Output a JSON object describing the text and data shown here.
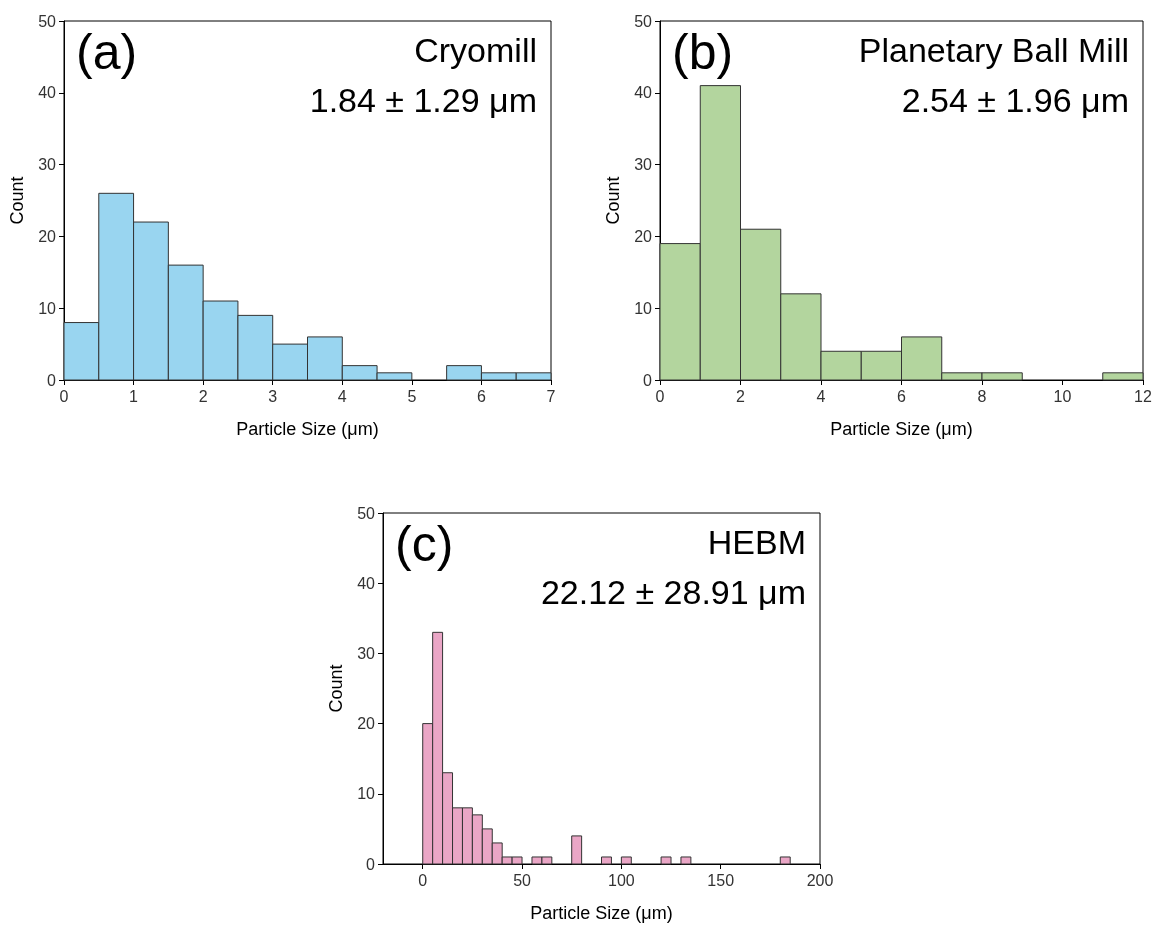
{
  "chart_data": [
    {
      "type": "histogram",
      "xlabel": "Particle Size (μm)",
      "ylabel": "Count",
      "annotations": [
        "(a)",
        "Cryomill",
        "1.84 ± 1.29 μm"
      ],
      "bins": [
        0,
        0.5,
        1,
        1.5,
        2,
        2.5,
        3,
        3.5,
        4,
        4.5,
        5,
        5.5,
        6,
        6.5,
        7
      ],
      "values": [
        8,
        26,
        22,
        16,
        11,
        9,
        5,
        6,
        2,
        1,
        0,
        2,
        1,
        1
      ],
      "color": "#99d5f0",
      "xlim": [
        0,
        7
      ],
      "xticks": [
        0,
        1,
        2,
        3,
        4,
        5,
        6,
        7
      ],
      "ylim": [
        0,
        50
      ],
      "yticks": [
        0,
        10,
        20,
        30,
        40,
        50
      ],
      "grid": false
    },
    {
      "type": "histogram",
      "xlabel": "Particle Size (μm)",
      "ylabel": "Count",
      "annotations": [
        "(b)",
        "Planetary Ball Mill",
        "2.54 ± 1.96 μm"
      ],
      "bins": [
        0,
        1,
        2,
        3,
        4,
        5,
        6,
        7,
        8,
        9,
        10,
        11,
        12
      ],
      "values": [
        19,
        41,
        21,
        12,
        4,
        4,
        6,
        1,
        1,
        0,
        0,
        1
      ],
      "color": "#b3d59e",
      "xlim": [
        0,
        12
      ],
      "xticks": [
        0,
        2,
        4,
        6,
        8,
        10,
        12
      ],
      "ylim": [
        0,
        50
      ],
      "yticks": [
        0,
        10,
        20,
        30,
        40,
        50
      ],
      "grid": false
    },
    {
      "type": "histogram",
      "xlabel": "Particle Size (μm)",
      "ylabel": "Count",
      "annotations": [
        "(c)",
        "HEBM",
        "22.12 ± 28.91 μm"
      ],
      "bins": [
        0,
        5,
        10,
        15,
        20,
        25,
        30,
        35,
        40,
        45,
        50,
        55,
        60,
        65,
        70,
        75,
        80,
        85,
        90,
        95,
        100,
        105,
        110,
        115,
        120,
        125,
        130,
        135,
        140,
        145,
        150,
        155,
        160,
        165,
        170,
        175,
        180,
        185
      ],
      "values": [
        20,
        33,
        13,
        8,
        8,
        7,
        5,
        3,
        1,
        1,
        0,
        1,
        1,
        0,
        0,
        4,
        0,
        0,
        1,
        0,
        1,
        0,
        0,
        0,
        1,
        0,
        1,
        0,
        0,
        0,
        0,
        0,
        0,
        0,
        0,
        0,
        1
      ],
      "color": "#eaa6c6",
      "xlim": [
        -20,
        200
      ],
      "xticks": [
        0,
        50,
        100,
        150,
        200
      ],
      "ylim": [
        0,
        50
      ],
      "yticks": [
        0,
        10,
        20,
        30,
        40,
        50
      ],
      "grid": false
    }
  ]
}
